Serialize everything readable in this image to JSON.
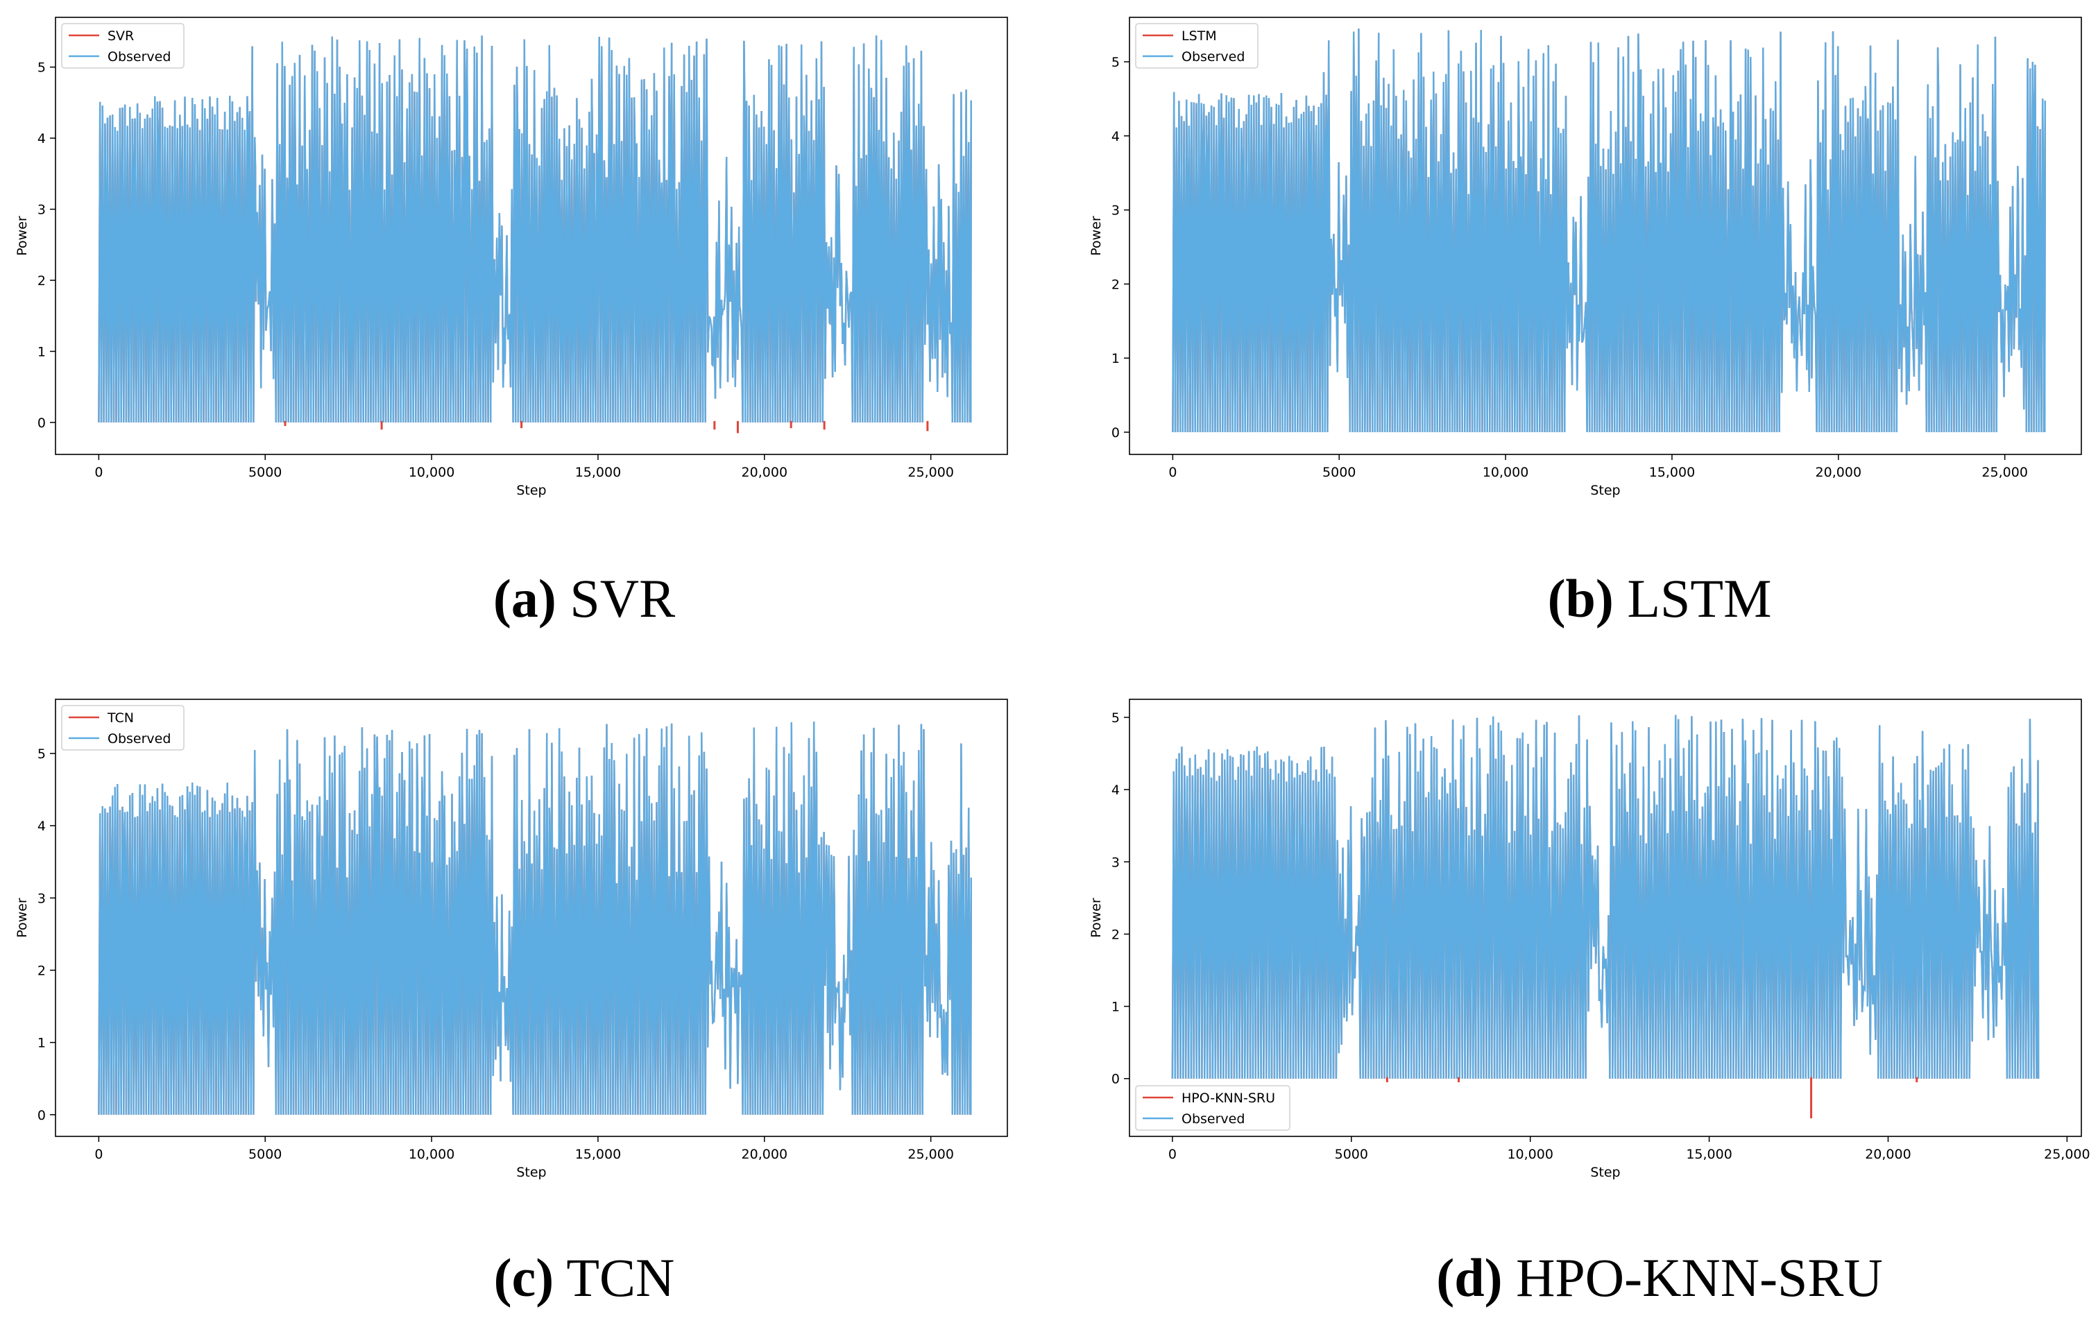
{
  "colors": {
    "predicted": "#e0453a",
    "observed": "#5dade2",
    "axis": "#000000",
    "background": "#ffffff"
  },
  "chart_data": [
    {
      "panel": "a",
      "type": "line",
      "caption_letter": "(a)",
      "caption_text": "SVR",
      "xlabel": "Step",
      "ylabel": "Power",
      "xlim": [
        -1300,
        27300
      ],
      "ylim": [
        -0.45,
        5.7
      ],
      "xticks": [
        0,
        5000,
        10000,
        15000,
        20000,
        25000
      ],
      "xtick_labels": [
        "0",
        "5000",
        "10,000",
        "15,000",
        "20,000",
        "25,000"
      ],
      "yticks": [
        0,
        1,
        2,
        3,
        4,
        5
      ],
      "ytick_labels": [
        "0",
        "1",
        "2",
        "3",
        "4",
        "5"
      ],
      "legend_position": "top-left",
      "series": [
        {
          "name": "SVR",
          "role": "predicted"
        },
        {
          "name": "Observed",
          "role": "observed"
        }
      ],
      "n_steps": 26200,
      "value_range": [
        -0.15,
        5.45
      ],
      "negative_spikes": [
        [
          5600,
          -0.05
        ],
        [
          8500,
          -0.1
        ],
        [
          12700,
          -0.08
        ],
        [
          18500,
          -0.1
        ],
        [
          19200,
          -0.15
        ],
        [
          20800,
          -0.08
        ],
        [
          21800,
          -0.1
        ],
        [
          24900,
          -0.12
        ]
      ]
    },
    {
      "panel": "b",
      "type": "line",
      "caption_letter": "(b)",
      "caption_text": "LSTM",
      "xlabel": "Step",
      "ylabel": "Power",
      "xlim": [
        -1300,
        27300
      ],
      "ylim": [
        -0.3,
        5.6
      ],
      "xticks": [
        0,
        5000,
        10000,
        15000,
        20000,
        25000
      ],
      "xtick_labels": [
        "0",
        "5000",
        "10,000",
        "15,000",
        "20,000",
        "25,000"
      ],
      "yticks": [
        0,
        1,
        2,
        3,
        4,
        5
      ],
      "ytick_labels": [
        "0",
        "1",
        "2",
        "3",
        "4",
        "5"
      ],
      "legend_position": "top-left",
      "series": [
        {
          "name": "LSTM",
          "role": "predicted"
        },
        {
          "name": "Observed",
          "role": "observed"
        }
      ],
      "n_steps": 26200,
      "value_range": [
        0,
        5.45
      ],
      "negative_spikes": []
    },
    {
      "panel": "c",
      "type": "line",
      "caption_letter": "(c)",
      "caption_text": "TCN",
      "xlabel": "Step",
      "ylabel": "Power",
      "xlim": [
        -1300,
        27300
      ],
      "ylim": [
        -0.3,
        5.75
      ],
      "xticks": [
        0,
        5000,
        10000,
        15000,
        20000,
        25000
      ],
      "xtick_labels": [
        "0",
        "5000",
        "10,000",
        "15,000",
        "20,000",
        "25,000"
      ],
      "yticks": [
        0,
        1,
        2,
        3,
        4,
        5
      ],
      "ytick_labels": [
        "0",
        "1",
        "2",
        "3",
        "4",
        "5"
      ],
      "legend_position": "top-left",
      "series": [
        {
          "name": "TCN",
          "role": "predicted"
        },
        {
          "name": "Observed",
          "role": "observed"
        }
      ],
      "n_steps": 26200,
      "value_range": [
        0,
        5.45
      ],
      "negative_spikes": []
    },
    {
      "panel": "d",
      "type": "line",
      "caption_letter": "(d)",
      "caption_text": "HPO-KNN-SRU",
      "xlabel": "Step",
      "ylabel": "Power",
      "xlim": [
        -1200,
        25400
      ],
      "ylim": [
        -0.8,
        5.25
      ],
      "xticks": [
        0,
        5000,
        10000,
        15000,
        20000,
        25000
      ],
      "xtick_labels": [
        "0",
        "5000",
        "10,000",
        "15,000",
        "20,000",
        "25,000"
      ],
      "yticks": [
        0,
        1,
        2,
        3,
        4,
        5
      ],
      "ytick_labels": [
        "0",
        "1",
        "2",
        "3",
        "4",
        "5"
      ],
      "legend_position": "bottom-left",
      "series": [
        {
          "name": "HPO-KNN-SRU",
          "role": "predicted"
        },
        {
          "name": "Observed",
          "role": "observed"
        }
      ],
      "n_steps": 24200,
      "value_range": [
        -0.55,
        5.05
      ],
      "negative_spikes": [
        [
          6000,
          -0.05
        ],
        [
          8000,
          -0.05
        ],
        [
          17850,
          -0.55
        ],
        [
          20800,
          -0.05
        ]
      ]
    }
  ]
}
